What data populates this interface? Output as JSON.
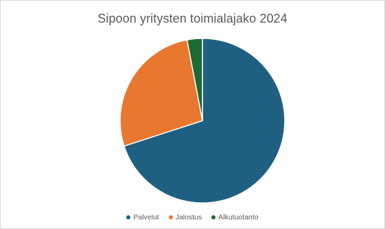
{
  "chart_data": {
    "type": "pie",
    "title": "Sipoon yritysten toimialajako 2024",
    "legend_position": "bottom",
    "categories": [
      "Palvelut",
      "Jalostus",
      "Alkutuotanto"
    ],
    "values": [
      70,
      27,
      3
    ],
    "colors": [
      "#1f5f82",
      "#e8772f",
      "#1e6b32"
    ],
    "start_angle_deg": 0,
    "direction": "clockwise"
  }
}
